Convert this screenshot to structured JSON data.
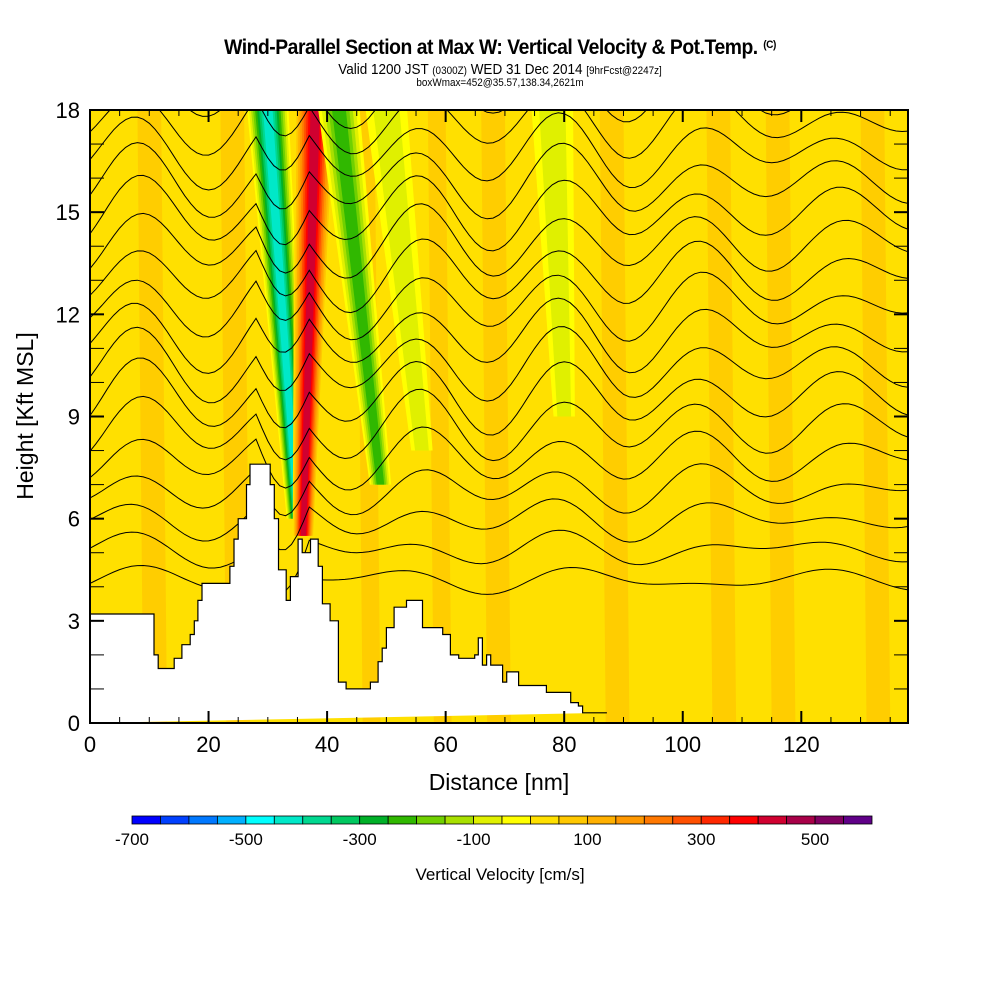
{
  "header": {
    "title": "Wind-Parallel Section at Max W: Vertical Velocity & Pot.Temp.",
    "copyright_mark": "(C)",
    "valid_prefix": "Valid 1200 JST",
    "valid_utc": "(0300Z)",
    "valid_date": "WED 31 Dec 2014",
    "forecast": "[9hrFcst@2247z]",
    "box_info": "boxWmax=452@35.57,138.34,2621m"
  },
  "chart_data": {
    "type": "heatmap",
    "title": "Wind-Parallel Section at Max W: Vertical Velocity & Pot.Temp.",
    "xlabel": "Distance [nm]",
    "ylabel": "Height [Kft MSL]",
    "xlim": [
      0,
      138
    ],
    "ylim": [
      0,
      18
    ],
    "x_ticks": [
      0,
      20,
      40,
      60,
      80,
      100,
      120
    ],
    "x_minor_step": 5,
    "y_ticks": [
      0,
      3,
      6,
      9,
      12,
      15,
      18
    ],
    "y_minor_step": 1,
    "colorbar": {
      "title": "Vertical Velocity [cm/s]",
      "placement": "bottom",
      "min": -700,
      "max": 600,
      "step": 50,
      "tick_labels": [
        "-700",
        "-500",
        "-300",
        "-100",
        "100",
        "300",
        "500"
      ],
      "tick_values": [
        -700,
        -500,
        -300,
        -100,
        100,
        300,
        500
      ],
      "colors": [
        "#0000ff",
        "#0040ff",
        "#0078ff",
        "#00b0ff",
        "#00ffff",
        "#00e8c8",
        "#00d890",
        "#00c860",
        "#00b028",
        "#30b800",
        "#70d000",
        "#a8e000",
        "#e0f000",
        "#ffff00",
        "#ffe000",
        "#ffc800",
        "#ffb000",
        "#ff9800",
        "#ff7800",
        "#ff5000",
        "#ff2800",
        "#ff0000",
        "#d00030",
        "#a80048",
        "#800060",
        "#600088"
      ]
    },
    "terrain_profile_kft": {
      "x_nm": [
        0,
        2.7,
        2.7,
        5.4,
        5.4,
        10.8,
        10.8,
        11.5,
        11.5,
        12.3,
        12.3,
        14.2,
        14.2,
        15.5,
        15.5,
        16.9,
        16.9,
        17.6,
        17.6,
        18.2,
        18.2,
        18.9,
        18.9,
        20.9,
        20.9,
        23.6,
        23.6,
        24.3,
        24.3,
        25.0,
        25.0,
        26.4,
        26.4,
        27.0,
        27.0,
        27.7,
        27.7,
        30.4,
        30.4,
        31.1,
        31.1,
        31.8,
        31.8,
        33.1,
        33.1,
        33.8,
        33.8,
        35.1,
        35.1,
        35.8,
        35.8,
        37.2,
        37.2,
        38.5,
        38.5,
        39.2,
        39.2,
        40.5,
        40.5,
        41.9,
        41.9,
        43.2,
        43.2,
        47.3,
        47.3,
        48.6,
        48.6,
        49.3,
        49.3,
        50.0,
        50.0,
        51.3,
        51.3,
        53.4,
        53.4,
        56.1,
        56.1,
        59.5,
        59.5,
        60.8,
        60.8,
        62.2,
        62.2,
        64.9,
        64.9,
        65.5,
        65.5,
        66.2,
        66.2,
        66.9,
        66.9,
        67.6,
        67.6,
        69.6,
        69.6,
        70.3,
        70.3,
        72.3,
        72.3,
        74.3,
        74.3,
        77.0,
        77.0,
        80.4,
        80.4,
        81.1,
        81.1,
        82.4,
        82.4,
        83.1,
        83.1,
        84.5,
        84.5,
        87.2,
        87.2,
        138
      ],
      "height": [
        3.2,
        3.2,
        3.2,
        3.2,
        3.2,
        3.2,
        2.0,
        2.0,
        1.6,
        1.6,
        1.6,
        1.6,
        1.9,
        1.9,
        2.3,
        2.3,
        2.6,
        2.6,
        3.0,
        3.0,
        3.6,
        3.6,
        4.1,
        4.1,
        4.1,
        4.1,
        4.6,
        4.6,
        5.4,
        5.4,
        6.0,
        6.0,
        7.0,
        7.0,
        7.6,
        7.6,
        7.6,
        7.6,
        7.0,
        7.0,
        6.0,
        6.0,
        4.5,
        4.5,
        3.6,
        3.6,
        4.3,
        4.3,
        5.4,
        5.4,
        5.0,
        5.0,
        5.4,
        5.4,
        4.6,
        4.6,
        3.5,
        3.5,
        3.0,
        3.0,
        1.2,
        1.2,
        1.0,
        1.0,
        1.2,
        1.2,
        1.8,
        1.8,
        2.2,
        2.2,
        2.8,
        2.8,
        3.4,
        3.4,
        3.6,
        3.6,
        2.8,
        2.8,
        2.6,
        2.6,
        2.0,
        2.0,
        1.9,
        1.9,
        2.0,
        2.0,
        2.5,
        2.5,
        1.7,
        1.7,
        2.0,
        2.0,
        1.7,
        1.7,
        1.2,
        1.2,
        1.5,
        1.5,
        1.1,
        1.1,
        1.1,
        1.1,
        0.9,
        0.9,
        0.9,
        0.9,
        0.6,
        0.6,
        0.5,
        0.5,
        0.3,
        0.3,
        0.3,
        0.3
      ]
    },
    "vertical_velocity_features": [
      {
        "name": "downdraft-main",
        "sign": "negative",
        "x_top_nm": 30,
        "x_bottom_nm": 35,
        "peak_cm_s": -450,
        "y_range_kft": [
          6,
          18
        ]
      },
      {
        "name": "updraft-main",
        "sign": "positive",
        "x_top_nm": 38,
        "x_bottom_nm": 36,
        "peak_cm_s": 452,
        "y_range_kft": [
          5.5,
          18
        ]
      },
      {
        "name": "downdraft-secondary",
        "sign": "negative",
        "x_top_nm": 42,
        "x_bottom_nm": 49,
        "peak_cm_s": -250,
        "y_range_kft": [
          7,
          18
        ]
      },
      {
        "name": "downdraft-weak-1",
        "sign": "negative",
        "x_top_nm": 50,
        "x_bottom_nm": 56,
        "peak_cm_s": -100,
        "y_range_kft": [
          8,
          18
        ]
      },
      {
        "name": "downdraft-weak-2",
        "sign": "negative",
        "x_top_nm": 78,
        "x_bottom_nm": 80,
        "peak_cm_s": -100,
        "y_range_kft": [
          9,
          18
        ]
      }
    ],
    "potential_temperature_contours": "black isentropes roughly every ~1.5 kft, wavy with lee-wave undulations downstream of 30-40 nm ridge"
  }
}
